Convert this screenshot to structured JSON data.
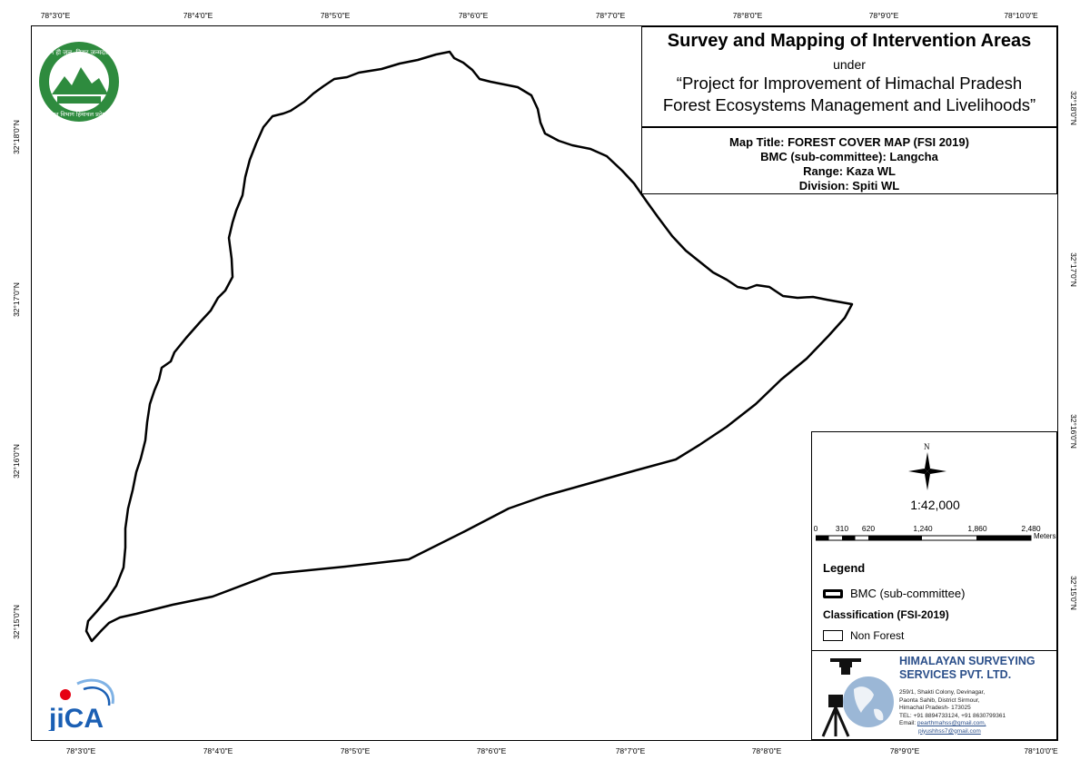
{
  "axes": {
    "top_ticks": [
      "78°3'0\"E",
      "78°4'0\"E",
      "78°5'0\"E",
      "78°6'0\"E",
      "78°7'0\"E",
      "78°8'0\"E",
      "78°9'0\"E",
      "78°10'0\"E"
    ],
    "bottom_ticks": [
      "78°3'0\"E",
      "78°4'0\"E",
      "78°5'0\"E",
      "78°6'0\"E",
      "78°7'0\"E",
      "78°8'0\"E",
      "78°9'0\"E",
      "78°10'0\"E"
    ],
    "left_ticks": [
      "32°18'0\"N",
      "32°17'0\"N",
      "32°16'0\"N",
      "32°15'0\"N"
    ],
    "right_ticks": [
      "32°18'0\"N",
      "32°17'0\"N",
      "32°16'0\"N",
      "32°15'0\"N"
    ]
  },
  "title": {
    "main": "Survey and Mapping of Intervention Areas",
    "under": "under",
    "project_line1": "“Project for Improvement of Himachal Pradesh",
    "project_line2": "Forest Ecosystems Management and Livelihoods”"
  },
  "info": {
    "map_title": "Map Title: FOREST COVER MAP (FSI 2019)",
    "bmc": "BMC (sub-committee): Langcha",
    "range": "Range: Kaza WL",
    "division": "Division: Spiti WL"
  },
  "north_label": "N",
  "scale": {
    "ratio": "1:42,000",
    "bar_labels": [
      "0",
      "310",
      "620",
      "1,240",
      "1,860",
      "2,480"
    ],
    "unit": "Meters"
  },
  "legend": {
    "title": "Legend",
    "bmc_label": "BMC (sub-committee)",
    "classification_title": "Classification (FSI-2019)",
    "non_forest_label": "Non Forest"
  },
  "company": {
    "name_line1": "HIMALAYAN SURVEYING",
    "name_line2": "SERVICES PVT. LTD.",
    "addr1": "259/1, Shakti Colony, Devinagar,",
    "addr2": "Paonta Sahib, District Sirmour,",
    "addr3": "Himachal Pradesh- 173025",
    "tel": "TEL: +91 8894733124, +91 8630799361",
    "email_label": "Email: ",
    "email1": "pearthmahss@gmail.com,",
    "email2": "piyushhss7@gmail.com"
  },
  "logos": {
    "forest_dept_text": "वन ही जल, विराट जन्मदाता",
    "forest_dept_bottom": "वन विभाग हिमाचल प्रदेश",
    "jica": "JICA"
  },
  "colors": {
    "boundary": "#000000",
    "company_blue": "#2b4f8a",
    "jica_red": "#e60012",
    "jica_blue": "#1a5fb4",
    "forest_green": "#2e8b3e"
  }
}
